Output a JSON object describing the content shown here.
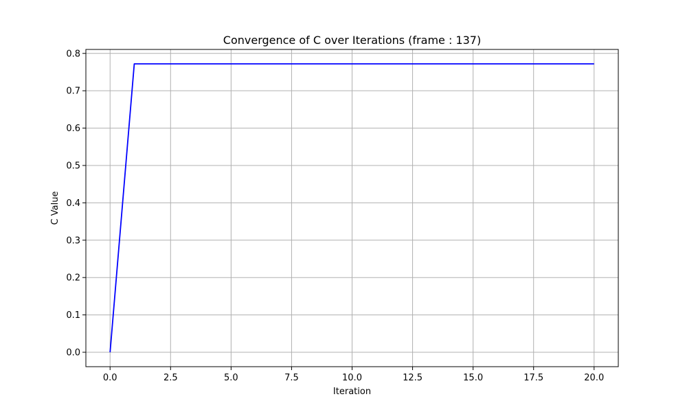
{
  "chart_data": {
    "type": "line",
    "title": "Convergence of C over Iterations (frame : 137)",
    "xlabel": "Iteration",
    "ylabel": "C Value",
    "xlim": [
      -1,
      21
    ],
    "ylim": [
      -0.0386,
      0.8106
    ],
    "xticks": [
      0.0,
      2.5,
      5.0,
      7.5,
      10.0,
      12.5,
      15.0,
      17.5,
      20.0
    ],
    "xtick_labels": [
      "0.0",
      "2.5",
      "5.0",
      "7.5",
      "10.0",
      "12.5",
      "15.0",
      "17.5",
      "20.0"
    ],
    "yticks": [
      0.0,
      0.1,
      0.2,
      0.3,
      0.4,
      0.5,
      0.6,
      0.7,
      0.8
    ],
    "ytick_labels": [
      "0.0",
      "0.1",
      "0.2",
      "0.3",
      "0.4",
      "0.5",
      "0.6",
      "0.7",
      "0.8"
    ],
    "grid": true,
    "line_color": "#0000ff",
    "grid_color": "#b0b0b0",
    "series": [
      {
        "x": [
          0,
          1,
          2,
          3,
          4,
          5,
          6,
          7,
          8,
          9,
          10,
          11,
          12,
          13,
          14,
          15,
          16,
          17,
          18,
          19,
          20
        ],
        "values": [
          0.0,
          0.772,
          0.772,
          0.772,
          0.772,
          0.772,
          0.772,
          0.772,
          0.772,
          0.772,
          0.772,
          0.772,
          0.772,
          0.772,
          0.772,
          0.772,
          0.772,
          0.772,
          0.772,
          0.772,
          0.772
        ]
      }
    ]
  }
}
